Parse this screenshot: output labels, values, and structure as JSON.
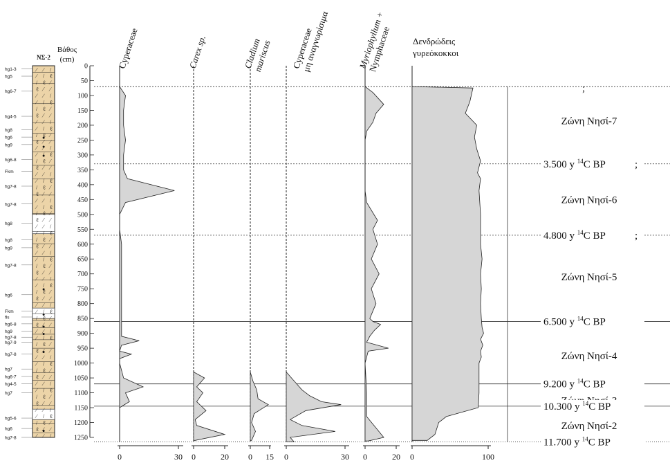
{
  "chart_data": {
    "type": "area",
    "title": "",
    "core_label": "ΝΣ-2",
    "depth_axis": {
      "label": "Βάθος (cm)",
      "label_line1": "Βάθος",
      "label_line2": "(cm)",
      "range": [
        0,
        1250
      ],
      "ticks": [
        0,
        50,
        100,
        150,
        200,
        250,
        300,
        350,
        400,
        450,
        500,
        550,
        600,
        650,
        700,
        750,
        800,
        850,
        900,
        950,
        1000,
        1050,
        1100,
        1150,
        1200,
        1250
      ]
    },
    "colors": {
      "fill": "#d6d6d6",
      "stroke": "#222222",
      "core": "#ecd4a8"
    },
    "lithology_codes": [
      {
        "depth": 10,
        "code": "hg1-3"
      },
      {
        "depth": 35,
        "code": "hg5"
      },
      {
        "depth": 85,
        "code": "hg6-7"
      },
      {
        "depth": 170,
        "code": "hg4-5"
      },
      {
        "depth": 215,
        "code": "hg8"
      },
      {
        "depth": 240,
        "code": "hg6"
      },
      {
        "depth": 265,
        "code": "hg9"
      },
      {
        "depth": 315,
        "code": "hg6-8"
      },
      {
        "depth": 355,
        "code": "Fkm"
      },
      {
        "depth": 405,
        "code": "hg7-8"
      },
      {
        "depth": 465,
        "code": "hg7-8"
      },
      {
        "depth": 530,
        "code": "hg8"
      },
      {
        "depth": 585,
        "code": "hg8"
      },
      {
        "depth": 612,
        "code": "hg9"
      },
      {
        "depth": 670,
        "code": "hg7-8"
      },
      {
        "depth": 770,
        "code": "hg6"
      },
      {
        "depth": 825,
        "code": "Fkm"
      },
      {
        "depth": 845,
        "code": "fls"
      },
      {
        "depth": 868,
        "code": "hg6-8"
      },
      {
        "depth": 893,
        "code": "hg9"
      },
      {
        "depth": 913,
        "code": "hg7-8"
      },
      {
        "depth": 930,
        "code": "hg7-9"
      },
      {
        "depth": 970,
        "code": "hg7-8"
      },
      {
        "depth": 1020,
        "code": "hg7"
      },
      {
        "depth": 1045,
        "code": "hg6-7"
      },
      {
        "depth": 1070,
        "code": "hg4-5"
      },
      {
        "depth": 1100,
        "code": "hg7"
      },
      {
        "depth": 1185,
        "code": "hg5-6"
      },
      {
        "depth": 1220,
        "code": "hg6"
      },
      {
        "depth": 1250,
        "code": "hg7-8"
      }
    ],
    "series": [
      {
        "name": "Cyperaceae",
        "label_lines": [
          "Cyperaceae"
        ],
        "italic": false,
        "max": 30,
        "ticks": [
          0,
          30
        ],
        "x_base": 173,
        "data": [
          [
            70,
            0
          ],
          [
            100,
            3
          ],
          [
            150,
            2
          ],
          [
            200,
            2
          ],
          [
            250,
            3
          ],
          [
            300,
            2
          ],
          [
            350,
            2
          ],
          [
            380,
            4
          ],
          [
            420,
            28
          ],
          [
            460,
            3
          ],
          [
            500,
            0
          ],
          [
            550,
            0
          ],
          [
            600,
            1
          ],
          [
            700,
            1
          ],
          [
            800,
            1
          ],
          [
            880,
            1
          ],
          [
            910,
            1
          ],
          [
            925,
            10
          ],
          [
            940,
            1
          ],
          [
            960,
            0
          ],
          [
            970,
            6
          ],
          [
            985,
            0
          ],
          [
            1000,
            0
          ],
          [
            1050,
            2
          ],
          [
            1080,
            12
          ],
          [
            1100,
            3
          ],
          [
            1130,
            5
          ],
          [
            1150,
            0
          ]
        ]
      },
      {
        "name": "Carex sp.",
        "label_lines": [
          "Carex sp."
        ],
        "italic": true,
        "max": 20,
        "ticks": [
          0,
          20
        ],
        "x_base": 280,
        "data": [
          [
            1030,
            0
          ],
          [
            1050,
            7
          ],
          [
            1080,
            2
          ],
          [
            1100,
            6
          ],
          [
            1130,
            2
          ],
          [
            1160,
            8
          ],
          [
            1190,
            1
          ],
          [
            1210,
            2
          ],
          [
            1240,
            20
          ],
          [
            1260,
            1
          ]
        ]
      },
      {
        "name": "Cladium mariscus",
        "label_lines": [
          "Cladium",
          "mariscus"
        ],
        "italic": true,
        "max": 15,
        "ticks": [
          0,
          15
        ],
        "x_base": 362,
        "data": [
          [
            1030,
            0
          ],
          [
            1060,
            2
          ],
          [
            1090,
            5
          ],
          [
            1120,
            6
          ],
          [
            1140,
            14
          ],
          [
            1170,
            3
          ],
          [
            1200,
            1
          ],
          [
            1230,
            4
          ],
          [
            1260,
            1
          ]
        ]
      },
      {
        "name": "Cyperaceae μη αναγνωρίσιμα",
        "label_lines": [
          "Cyperaceae",
          "μη αναγνωρίσιμα"
        ],
        "italic": false,
        "max": 30,
        "ticks": [
          0,
          30
        ],
        "x_base": 414,
        "data": [
          [
            1030,
            0
          ],
          [
            1060,
            4
          ],
          [
            1090,
            8
          ],
          [
            1110,
            12
          ],
          [
            1130,
            18
          ],
          [
            1140,
            28
          ],
          [
            1160,
            10
          ],
          [
            1190,
            2
          ],
          [
            1210,
            8
          ],
          [
            1230,
            25
          ],
          [
            1250,
            2
          ],
          [
            1265,
            4
          ]
        ]
      },
      {
        "name": "Myriophyllum + Nymphaceae",
        "label_lines": [
          "Myriophyllum +",
          "Nymphaceae"
        ],
        "italic": false,
        "italic_part": "Myriophyllum",
        "max": 20,
        "ticks": [
          0,
          20
        ],
        "x_base": 528,
        "data": [
          [
            70,
            0
          ],
          [
            90,
            5
          ],
          [
            130,
            12
          ],
          [
            160,
            7
          ],
          [
            190,
            5
          ],
          [
            220,
            1
          ],
          [
            250,
            0
          ],
          [
            300,
            0
          ],
          [
            420,
            0
          ],
          [
            460,
            1
          ],
          [
            520,
            8
          ],
          [
            550,
            5
          ],
          [
            600,
            8
          ],
          [
            650,
            4
          ],
          [
            700,
            9
          ],
          [
            750,
            4
          ],
          [
            800,
            7
          ],
          [
            850,
            3
          ],
          [
            860,
            5
          ],
          [
            870,
            10
          ],
          [
            890,
            6
          ],
          [
            910,
            3
          ],
          [
            930,
            1
          ],
          [
            950,
            15
          ],
          [
            960,
            2
          ],
          [
            1000,
            0
          ],
          [
            1100,
            1
          ],
          [
            1180,
            1
          ],
          [
            1250,
            12
          ],
          [
            1262,
            2
          ]
        ]
      },
      {
        "name": "Δενδρώδεις γυρεόκοκκοι",
        "label_lines": [
          "Δενδρώδεις",
          "γυρεόκοκκοι"
        ],
        "italic": false,
        "max": 100,
        "ticks": [
          0,
          100
        ],
        "x_base": 596,
        "data": [
          [
            70,
            0
          ],
          [
            75,
            80
          ],
          [
            120,
            76
          ],
          [
            160,
            70
          ],
          [
            200,
            85
          ],
          [
            240,
            82
          ],
          [
            280,
            85
          ],
          [
            320,
            90
          ],
          [
            360,
            86
          ],
          [
            380,
            90
          ],
          [
            420,
            88
          ],
          [
            500,
            90
          ],
          [
            600,
            90
          ],
          [
            650,
            92
          ],
          [
            700,
            90
          ],
          [
            750,
            91
          ],
          [
            800,
            90
          ],
          [
            850,
            91
          ],
          [
            880,
            92
          ],
          [
            900,
            94
          ],
          [
            920,
            90
          ],
          [
            940,
            93
          ],
          [
            960,
            90
          ],
          [
            980,
            91
          ],
          [
            1000,
            88
          ],
          [
            1050,
            88
          ],
          [
            1100,
            88
          ],
          [
            1150,
            87
          ],
          [
            1180,
            45
          ],
          [
            1200,
            35
          ],
          [
            1240,
            30
          ],
          [
            1260,
            20
          ]
        ]
      }
    ],
    "zones": [
      {
        "name": "Ζώνη Νησί-7",
        "center": 185
      },
      {
        "name": "Ζώνη Νησί-6",
        "center": 450
      },
      {
        "name": "Ζώνη Νησί-5",
        "center": 710
      },
      {
        "name": "Ζώνη Νησί-4",
        "center": 975
      },
      {
        "name": "Ζώνη Νησί-3",
        "center": 1125
      },
      {
        "name": "Ζώνη Νησί-2",
        "center": 1210
      }
    ],
    "boundaries": [
      {
        "depth": 70,
        "style": "dashed",
        "age": "",
        "mark": ";"
      },
      {
        "depth": 330,
        "style": "dashed",
        "age": "3.500 y ",
        "mark": ";"
      },
      {
        "depth": 570,
        "style": "dashed",
        "age": "4.800 y ",
        "mark": ";"
      },
      {
        "depth": 860,
        "style": "solid",
        "age": "6.500 y ",
        "mark": ""
      },
      {
        "depth": 1070,
        "style": "solid",
        "age": "9.200 y ",
        "mark": ""
      },
      {
        "depth": 1145,
        "style": "solid",
        "age": "10.300 y ",
        "mark": ""
      },
      {
        "depth": 1265,
        "style": "dotted",
        "age": "11.700 y ",
        "mark": ""
      }
    ],
    "age_sup": "14",
    "age_unit": "C BP"
  }
}
